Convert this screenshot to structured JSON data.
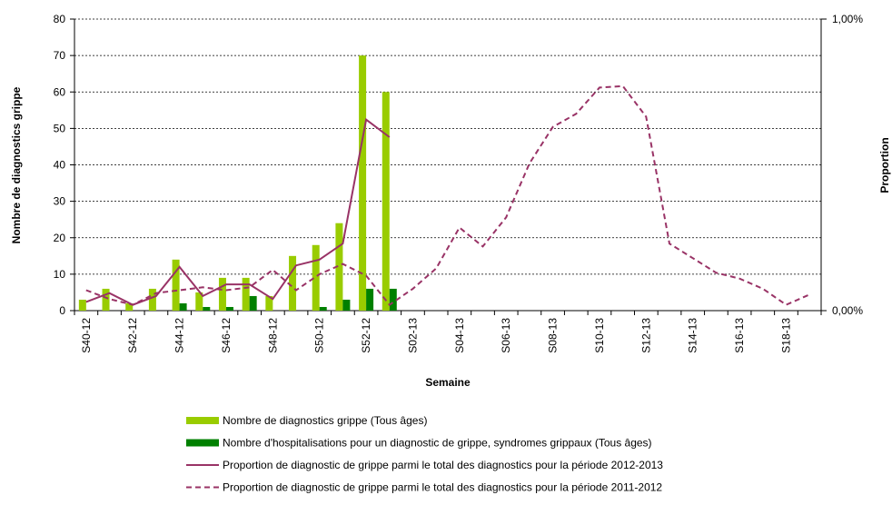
{
  "chart_data": {
    "type": "bar-line",
    "ylabel": "Nombre de diagnostics grippe",
    "y2label": "Proportion",
    "xlabel": "Semaine",
    "categories": [
      "S40-12",
      null,
      "S42-12",
      null,
      "S44-12",
      null,
      "S46-12",
      null,
      "S48-12",
      null,
      "S50-12",
      null,
      "S52-12",
      null,
      "S02-13",
      null,
      "S04-13",
      null,
      "S06-13",
      null,
      "S08-13",
      null,
      "S10-13",
      null,
      "S12-13",
      null,
      "S14-13",
      null,
      "S16-13",
      null,
      "S18-13",
      null
    ],
    "ylim": [
      0,
      80
    ],
    "yticks": [
      0,
      10,
      20,
      30,
      40,
      50,
      60,
      70,
      80
    ],
    "y2lim": [
      0,
      1
    ],
    "y2ticks": [
      {
        "value": 0,
        "label": "0,00%"
      },
      {
        "value": 1,
        "label": "1,00%"
      }
    ],
    "grid": true,
    "series": [
      {
        "name": "Nombre de diagnostics grippe (Tous âges)",
        "type": "bar",
        "color": "#99cc00",
        "values": [
          3,
          6,
          2,
          6,
          14,
          5,
          9,
          9,
          4,
          15,
          18,
          24,
          70,
          60,
          null,
          null,
          null,
          null,
          null,
          null,
          null,
          null,
          null,
          null,
          null,
          null,
          null,
          null,
          null,
          null,
          null,
          null
        ]
      },
      {
        "name": "Nombre d'hospitalisations pour un diagnostic de grippe, syndromes grippaux (Tous âges)",
        "type": "bar",
        "color": "#008000",
        "values": [
          0,
          0,
          0,
          0,
          2,
          1,
          1,
          4,
          0,
          0,
          1,
          3,
          6,
          6,
          null,
          null,
          null,
          null,
          null,
          null,
          null,
          null,
          null,
          null,
          null,
          null,
          null,
          null,
          null,
          null,
          null,
          null
        ]
      },
      {
        "name": "Proportion de diagnostic de grippe parmi le total des diagnostics pour la période 2012-2013",
        "type": "line",
        "axis": "y2",
        "color": "#993366",
        "dash": false,
        "values": [
          0.03,
          0.06,
          0.02,
          0.05,
          0.15,
          0.05,
          0.09,
          0.09,
          0.04,
          0.155,
          0.175,
          0.23,
          0.655,
          0.595,
          null,
          null,
          null,
          null,
          null,
          null,
          null,
          null,
          null,
          null,
          null,
          null,
          null,
          null,
          null,
          null,
          null,
          null
        ]
      },
      {
        "name": "Proportion de diagnostic de grippe parmi le total des diagnostics pour la période 2011-2012",
        "type": "line",
        "axis": "y2",
        "color": "#993366",
        "dash": true,
        "values": [
          0.07,
          0.04,
          0.02,
          0.06,
          0.07,
          0.08,
          0.07,
          0.08,
          0.14,
          0.07,
          0.125,
          0.16,
          0.12,
          0.02,
          0.075,
          0.145,
          0.285,
          0.22,
          0.32,
          0.505,
          0.63,
          0.675,
          0.765,
          0.77,
          0.665,
          0.23,
          0.18,
          0.13,
          0.11,
          0.075,
          0.02,
          0.055
        ]
      }
    ]
  }
}
